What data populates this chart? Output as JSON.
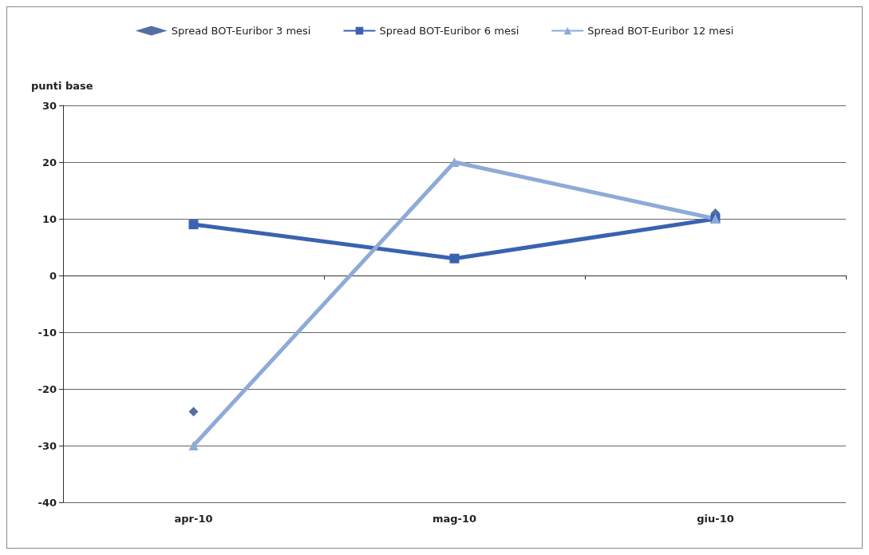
{
  "chart_data": {
    "type": "line",
    "ylabel": "punti base",
    "categories": [
      "apr-10",
      "mag-10",
      "giu-10"
    ],
    "series": [
      {
        "name": "Spread BOT-Euribor 3 mesi",
        "type": "scatter",
        "color": "#2b4a8c",
        "marker": "diamond",
        "values": [
          -24,
          null,
          11
        ]
      },
      {
        "name": "Spread BOT-Euribor 6 mesi",
        "color": "#3a62b0",
        "marker": "square",
        "values": [
          9,
          3,
          10
        ]
      },
      {
        "name": "Spread BOT-Euribor 12 mesi",
        "color": "#8eaad8",
        "marker": "triangle",
        "values": [
          -30,
          20,
          10
        ]
      }
    ],
    "ylim": [
      -40,
      30
    ],
    "yticks": [
      -40,
      -30,
      -20,
      -10,
      0,
      10,
      20,
      30
    ],
    "grid": "y",
    "legend": "top"
  }
}
